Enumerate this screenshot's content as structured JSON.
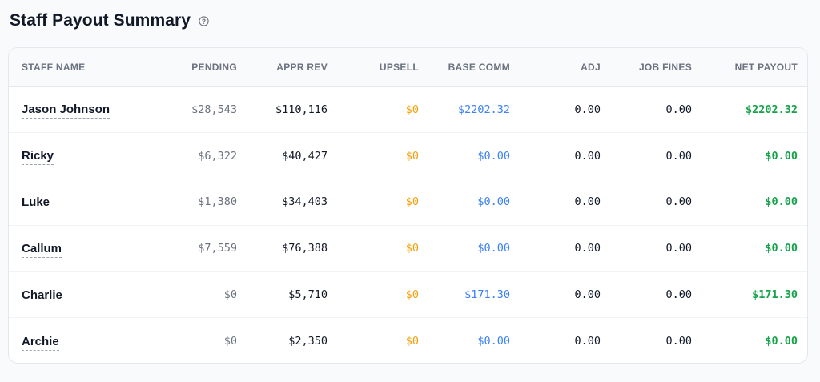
{
  "header": {
    "title": "Staff Payout Summary",
    "help_icon": "question-circle-icon"
  },
  "table": {
    "columns": {
      "name": "STAFF NAME",
      "pending": "PENDING",
      "appr_rev": "APPR REV",
      "upsell": "UPSELL",
      "base_comm": "BASE COMM",
      "adj": "ADJ",
      "job_fines": "JOB FINES",
      "net_payout": "NET PAYOUT"
    },
    "rows": [
      {
        "name": "Jason Johnson",
        "pending": "$28,543",
        "appr_rev": "$110,116",
        "upsell": "$0",
        "base_comm": "$2202.32",
        "adj": "0.00",
        "job_fines": "0.00",
        "net_payout": "$2202.32"
      },
      {
        "name": "Ricky",
        "pending": "$6,322",
        "appr_rev": "$40,427",
        "upsell": "$0",
        "base_comm": "$0.00",
        "adj": "0.00",
        "job_fines": "0.00",
        "net_payout": "$0.00"
      },
      {
        "name": "Luke",
        "pending": "$1,380",
        "appr_rev": "$34,403",
        "upsell": "$0",
        "base_comm": "$0.00",
        "adj": "0.00",
        "job_fines": "0.00",
        "net_payout": "$0.00"
      },
      {
        "name": "Callum",
        "pending": "$7,559",
        "appr_rev": "$76,388",
        "upsell": "$0",
        "base_comm": "$0.00",
        "adj": "0.00",
        "job_fines": "0.00",
        "net_payout": "$0.00"
      },
      {
        "name": "Charlie",
        "pending": "$0",
        "appr_rev": "$5,710",
        "upsell": "$0",
        "base_comm": "$171.30",
        "adj": "0.00",
        "job_fines": "0.00",
        "net_payout": "$171.30"
      },
      {
        "name": "Archie",
        "pending": "$0",
        "appr_rev": "$2,350",
        "upsell": "$0",
        "base_comm": "$0.00",
        "adj": "0.00",
        "job_fines": "0.00",
        "net_payout": "$0.00"
      }
    ]
  },
  "colors": {
    "pending": "#6b7280",
    "upsell": "#f59e0b",
    "base_comm": "#3b82f6",
    "net_payout": "#16a34a"
  }
}
